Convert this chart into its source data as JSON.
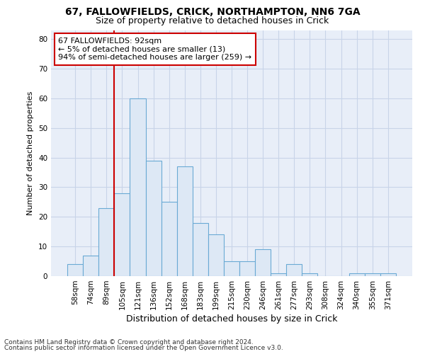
{
  "title1": "67, FALLOWFIELDS, CRICK, NORTHAMPTON, NN6 7GA",
  "title2": "Size of property relative to detached houses in Crick",
  "xlabel": "Distribution of detached houses by size in Crick",
  "ylabel": "Number of detached properties",
  "footer1": "Contains HM Land Registry data © Crown copyright and database right 2024.",
  "footer2": "Contains public sector information licensed under the Open Government Licence v3.0.",
  "categories": [
    "58sqm",
    "74sqm",
    "89sqm",
    "105sqm",
    "121sqm",
    "136sqm",
    "152sqm",
    "168sqm",
    "183sqm",
    "199sqm",
    "215sqm",
    "230sqm",
    "246sqm",
    "261sqm",
    "277sqm",
    "293sqm",
    "308sqm",
    "324sqm",
    "340sqm",
    "355sqm",
    "371sqm"
  ],
  "values": [
    4,
    7,
    23,
    28,
    60,
    39,
    25,
    37,
    18,
    14,
    5,
    5,
    9,
    1,
    4,
    1,
    0,
    0,
    1,
    1,
    1
  ],
  "bar_color": "#dde8f5",
  "bar_edge_color": "#6aaad4",
  "vline_color": "#cc0000",
  "annotation_line1": "67 FALLOWFIELDS: 92sqm",
  "annotation_line2": "← 5% of detached houses are smaller (13)",
  "annotation_line3": "94% of semi-detached houses are larger (259) →",
  "annotation_box_color": "white",
  "annotation_box_edge_color": "#cc0000",
  "ylim": [
    0,
    83
  ],
  "yticks": [
    0,
    10,
    20,
    30,
    40,
    50,
    60,
    70,
    80
  ],
  "grid_color": "#c8d4e8",
  "bg_color": "#e8eef8",
  "title1_fontsize": 10,
  "title2_fontsize": 9,
  "xlabel_fontsize": 9,
  "ylabel_fontsize": 8,
  "tick_fontsize": 7.5,
  "footer_fontsize": 6.5,
  "annot_fontsize": 8
}
